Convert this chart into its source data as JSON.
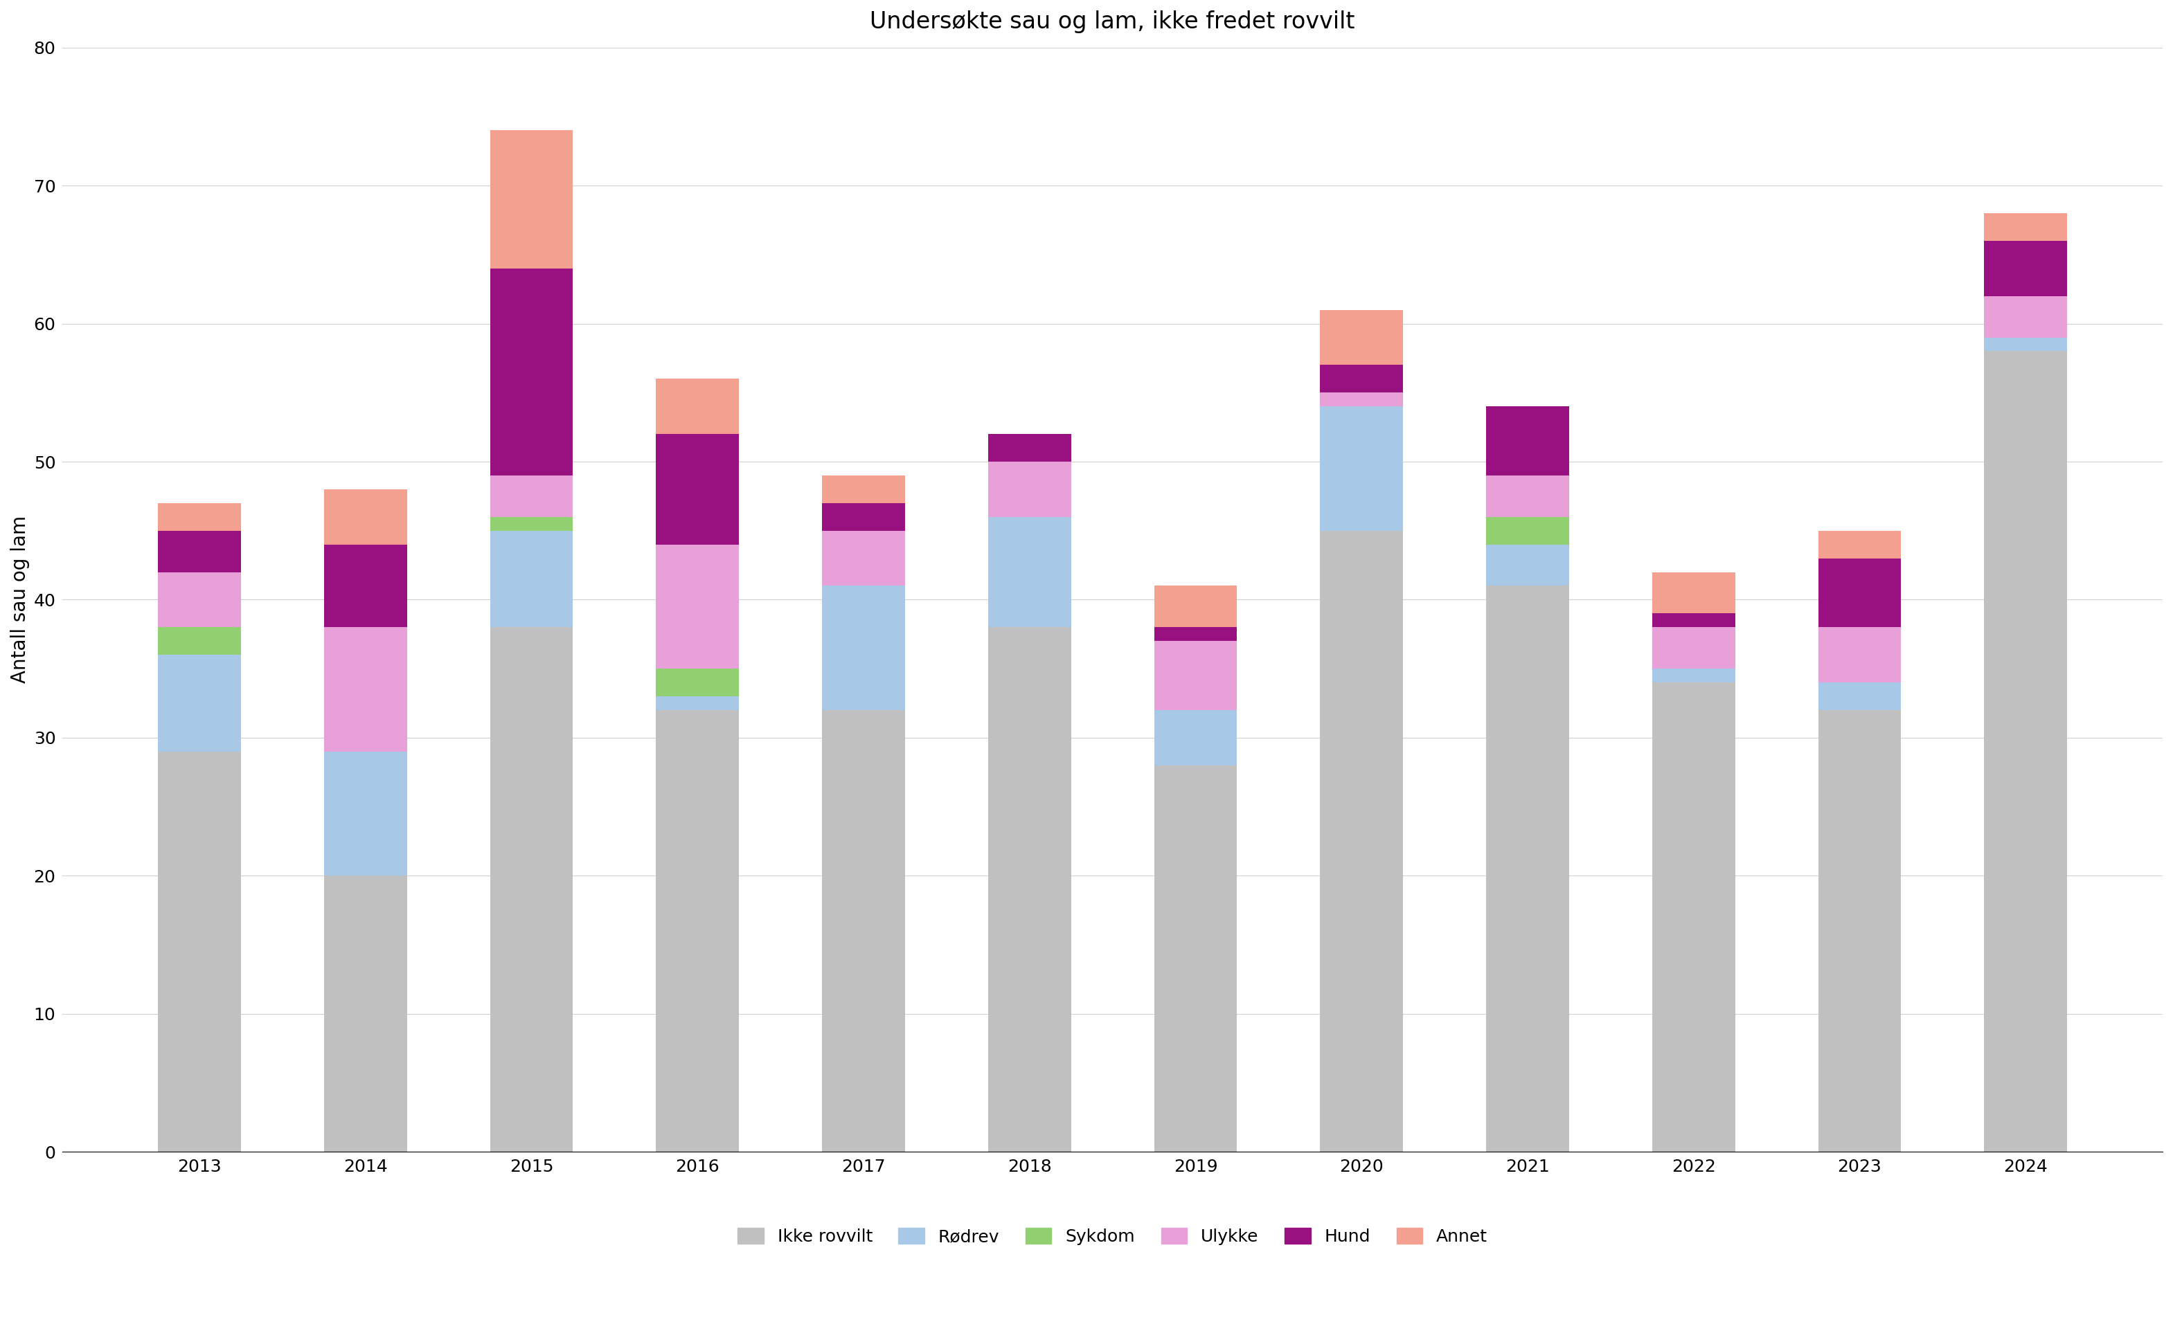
{
  "title": "Undersøkte sau og lam, ikke fredet rovvilt",
  "ylabel": "Antall sau og lam",
  "years": [
    "2013",
    "2014",
    "2015",
    "2016",
    "2017",
    "2018",
    "2019",
    "2020",
    "2021",
    "2022",
    "2023",
    "2024"
  ],
  "categories": [
    "Ikke rovvilt",
    "Rødrev",
    "Sykdom",
    "Ulykke",
    "Hund",
    "Annet"
  ],
  "colors": [
    "#c0c0c0",
    "#a8c8e8",
    "#90d070",
    "#e8a0d8",
    "#991080",
    "#f4a090"
  ],
  "data": {
    "Ikke rovvilt": [
      29,
      20,
      38,
      32,
      32,
      38,
      28,
      45,
      41,
      34,
      32,
      58
    ],
    "Rødrev": [
      7,
      9,
      7,
      1,
      9,
      8,
      4,
      9,
      3,
      1,
      2,
      1
    ],
    "Sykdom": [
      2,
      0,
      1,
      2,
      0,
      0,
      0,
      0,
      2,
      0,
      0,
      0
    ],
    "Ulykke": [
      4,
      9,
      3,
      9,
      4,
      4,
      5,
      1,
      3,
      3,
      4,
      3
    ],
    "Hund": [
      3,
      6,
      15,
      8,
      2,
      2,
      1,
      2,
      5,
      1,
      5,
      4
    ],
    "Annet": [
      2,
      4,
      10,
      4,
      2,
      0,
      3,
      4,
      0,
      3,
      2,
      2
    ]
  },
  "ylim": [
    0,
    80
  ],
  "yticks": [
    0,
    10,
    20,
    30,
    40,
    50,
    60,
    70,
    80
  ],
  "background_color": "#ffffff",
  "title_fontsize": 24,
  "axis_fontsize": 20,
  "tick_fontsize": 18,
  "legend_fontsize": 18
}
